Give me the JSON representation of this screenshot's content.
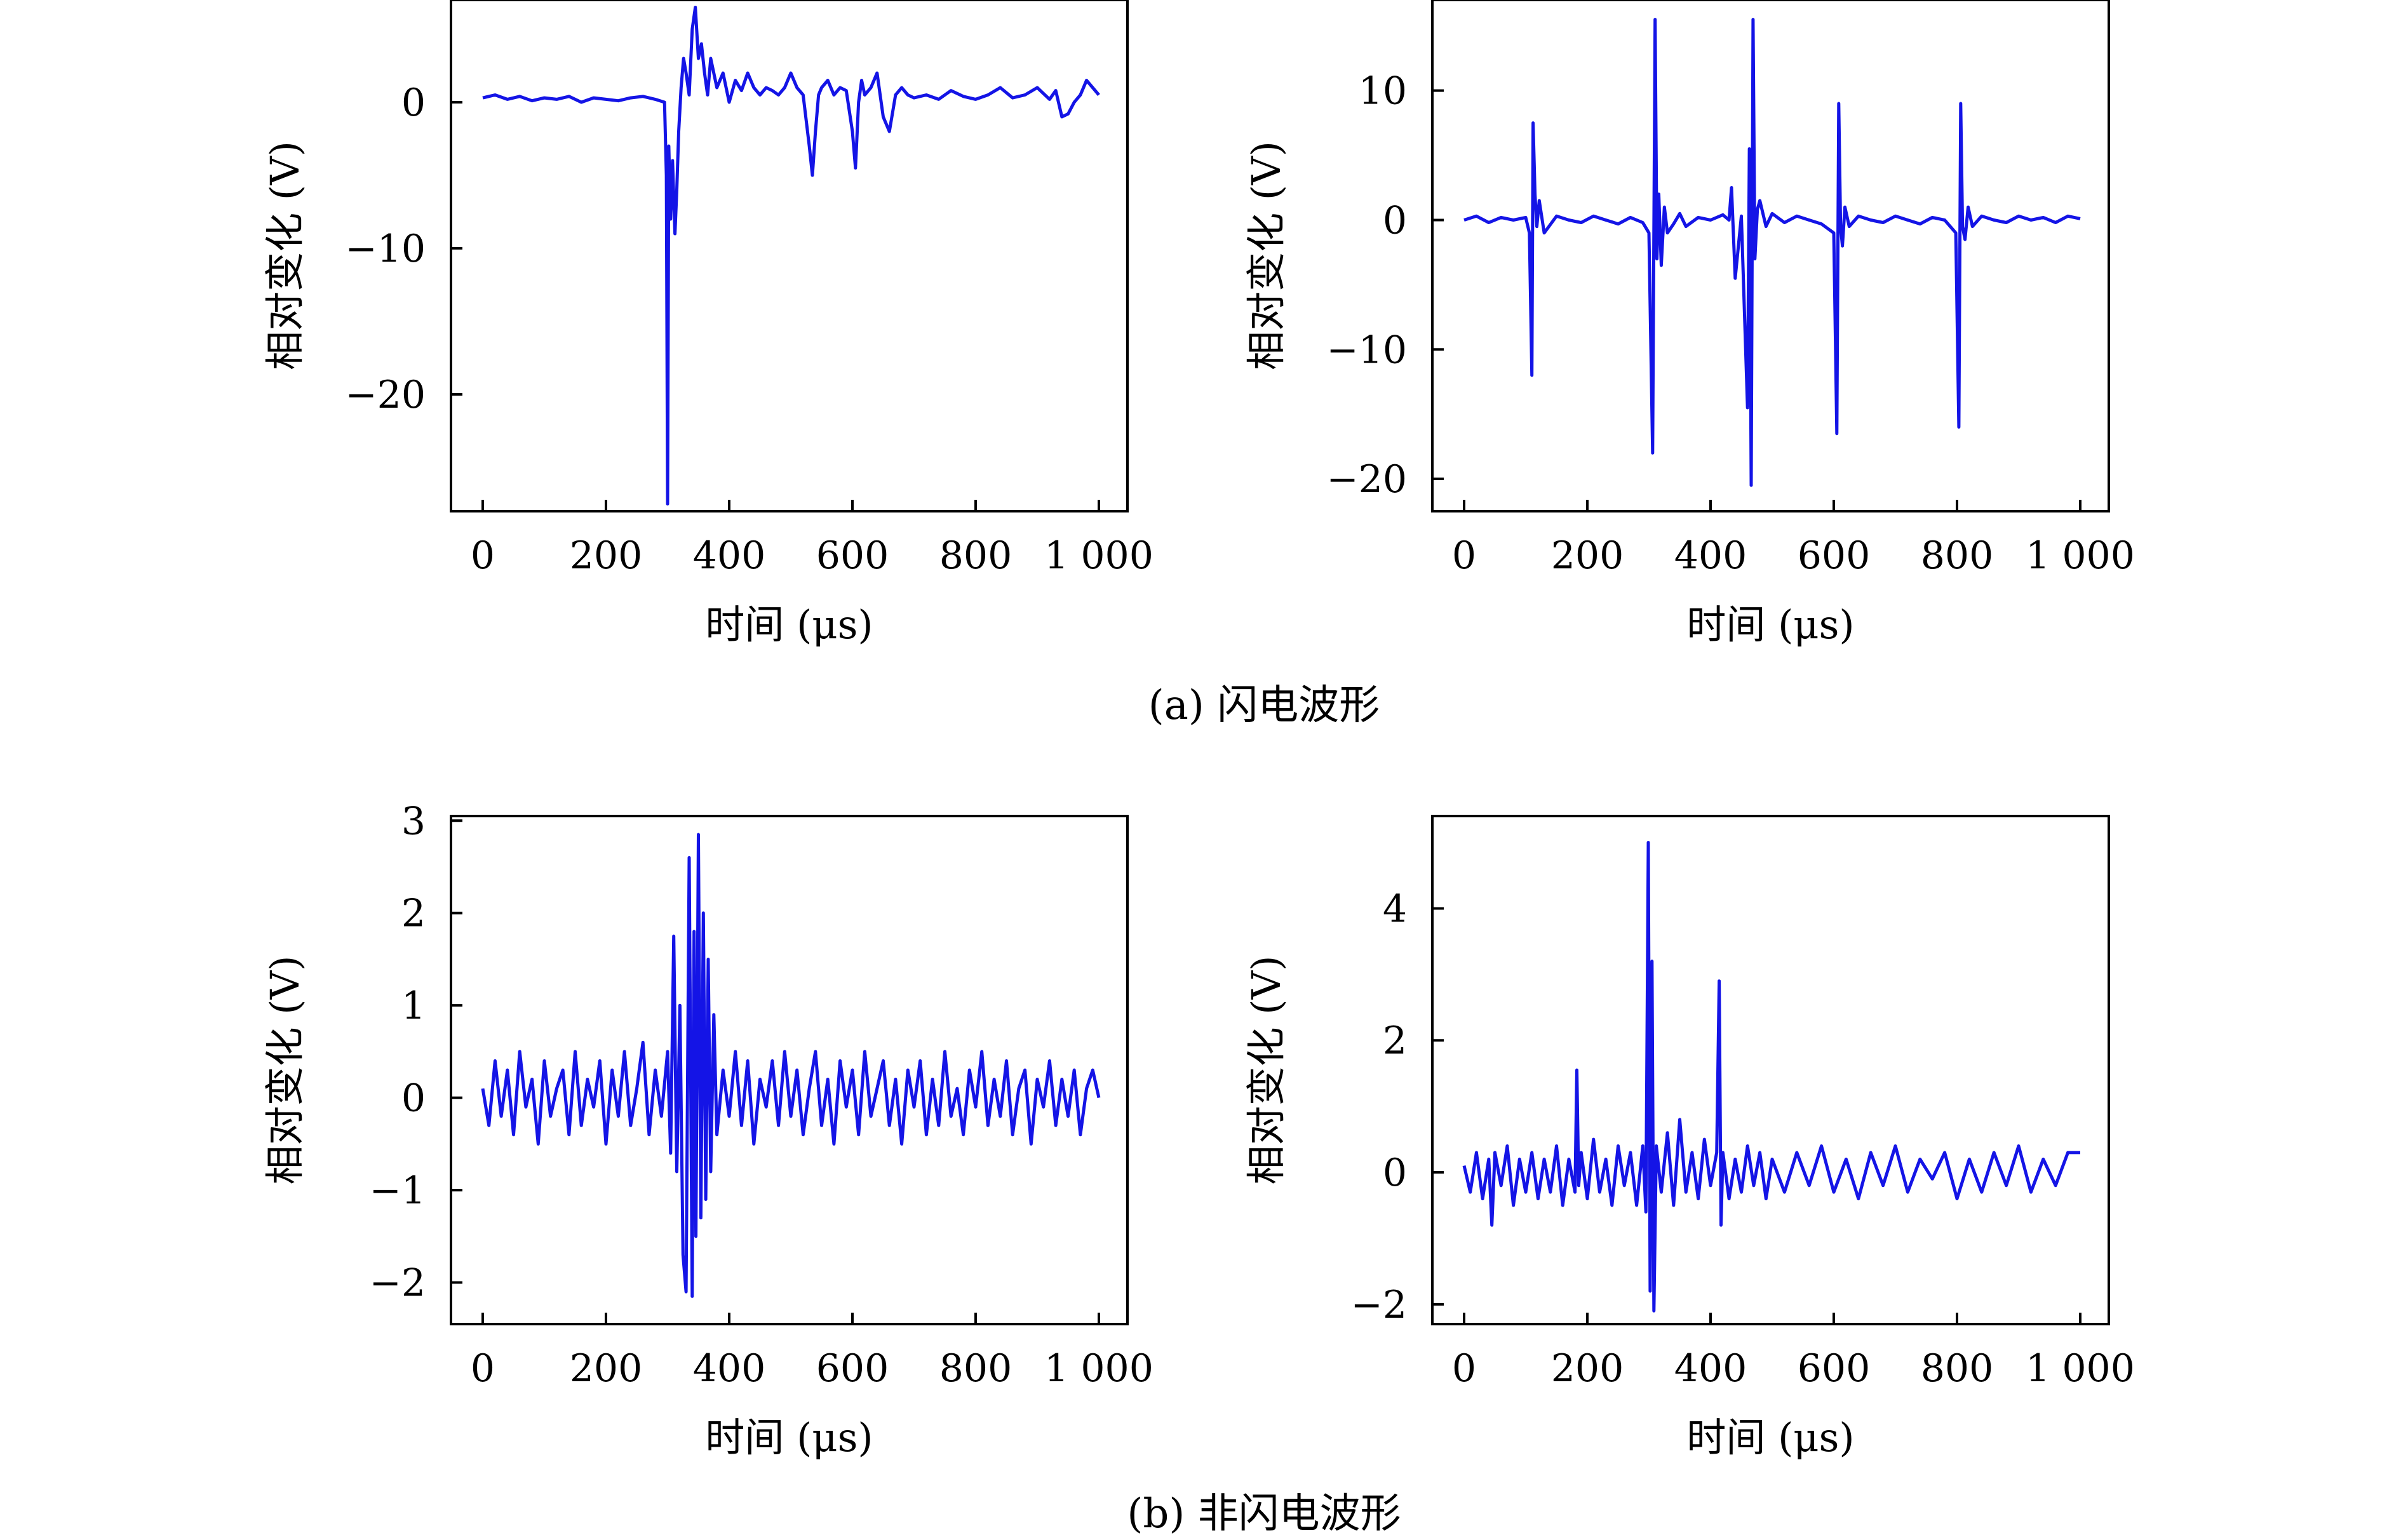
{
  "captions": {
    "a": "(a) 闪电波形",
    "b": "(b) 非闪电波形"
  },
  "colors": {
    "series": "#1414e6",
    "axis": "#000000",
    "background": "#ffffff"
  },
  "chart_data": [
    {
      "type": "line",
      "group": "a",
      "xlabel": "时间 (μs)",
      "ylabel": "相对变化 (V)",
      "xlim": [
        0,
        1000
      ],
      "ylim": [
        -28,
        7
      ],
      "xticks": [
        0,
        200,
        400,
        600,
        800,
        1000
      ],
      "xtick_labels": [
        "0",
        "200",
        "400",
        "600",
        "800",
        "1 000"
      ],
      "yticks": [
        0,
        -10,
        -20
      ],
      "ytick_labels": [
        "0",
        "−10",
        "−20"
      ],
      "series": [
        {
          "color": "#1414e6",
          "x": [
            0,
            20,
            40,
            60,
            80,
            100,
            120,
            140,
            160,
            180,
            200,
            220,
            240,
            260,
            280,
            295,
            298,
            300,
            302,
            305,
            308,
            312,
            315,
            318,
            322,
            326,
            330,
            335,
            340,
            345,
            350,
            355,
            360,
            365,
            370,
            380,
            390,
            400,
            410,
            420,
            430,
            440,
            450,
            460,
            470,
            480,
            490,
            500,
            510,
            520,
            530,
            535,
            540,
            545,
            550,
            560,
            570,
            580,
            590,
            600,
            605,
            610,
            615,
            620,
            630,
            640,
            650,
            660,
            670,
            680,
            690,
            700,
            720,
            740,
            760,
            780,
            800,
            820,
            840,
            860,
            880,
            900,
            920,
            930,
            940,
            950,
            960,
            970,
            980,
            990,
            1000
          ],
          "y": [
            0.3,
            0.5,
            0.2,
            0.4,
            0.1,
            0.3,
            0.2,
            0.4,
            0.0,
            0.3,
            0.2,
            0.1,
            0.3,
            0.4,
            0.2,
            0.0,
            -5.0,
            -27.5,
            -3.0,
            -8.0,
            -4.0,
            -9.0,
            -6.0,
            -2.0,
            1.0,
            3.0,
            2.0,
            0.5,
            5.0,
            6.5,
            3.0,
            4.0,
            2.0,
            0.5,
            3.0,
            1.0,
            2.0,
            0.0,
            1.5,
            0.8,
            2.0,
            1.0,
            0.5,
            1.0,
            0.8,
            0.5,
            1.0,
            2.0,
            1.0,
            0.5,
            -3.0,
            -5.0,
            -2.0,
            0.5,
            1.0,
            1.5,
            0.5,
            1.0,
            0.8,
            -2.0,
            -4.5,
            0.0,
            1.5,
            0.5,
            1.0,
            2.0,
            -1.0,
            -2.0,
            0.5,
            1.0,
            0.5,
            0.3,
            0.5,
            0.2,
            0.8,
            0.4,
            0.2,
            0.5,
            1.0,
            0.3,
            0.5,
            1.0,
            0.2,
            0.8,
            -1.0,
            -0.8,
            0.0,
            0.5,
            1.5,
            1.0,
            0.5
          ]
        }
      ]
    },
    {
      "type": "line",
      "group": "a",
      "xlabel": "时间 (μs)",
      "ylabel": "相对变化 (V)",
      "xlim": [
        0,
        1000
      ],
      "ylim": [
        -22.5,
        17
      ],
      "xticks": [
        0,
        200,
        400,
        600,
        800,
        1000
      ],
      "xtick_labels": [
        "0",
        "200",
        "400",
        "600",
        "800",
        "1 000"
      ],
      "yticks": [
        10,
        0,
        -10,
        -20
      ],
      "ytick_labels": [
        "10",
        "0",
        "−10",
        "−20"
      ],
      "series": [
        {
          "color": "#1414e6",
          "x": [
            0,
            20,
            40,
            60,
            80,
            100,
            106,
            110,
            112,
            115,
            118,
            122,
            130,
            150,
            170,
            190,
            210,
            230,
            250,
            270,
            290,
            300,
            306,
            310,
            313,
            316,
            320,
            325,
            330,
            340,
            350,
            360,
            380,
            400,
            420,
            430,
            434,
            440,
            450,
            460,
            463,
            466,
            469,
            472,
            476,
            480,
            490,
            500,
            520,
            540,
            560,
            580,
            600,
            605,
            608,
            611,
            614,
            618,
            625,
            640,
            660,
            680,
            700,
            720,
            740,
            760,
            780,
            798,
            803,
            806,
            809,
            813,
            818,
            825,
            840,
            860,
            880,
            900,
            920,
            940,
            960,
            980,
            1000
          ],
          "y": [
            0,
            0.3,
            -0.2,
            0.2,
            0,
            0.2,
            -1,
            -12,
            7.5,
            2,
            -0.5,
            1.5,
            -1,
            0.3,
            0,
            -0.2,
            0.3,
            0,
            -0.3,
            0.2,
            -0.2,
            -1,
            -18,
            15.5,
            -3,
            2,
            -3.5,
            1,
            -1,
            -0.3,
            0.5,
            -0.5,
            0.2,
            0,
            0.4,
            0,
            2.5,
            -4.5,
            0.3,
            -14.5,
            5.5,
            -20.5,
            15.5,
            -3,
            0.8,
            1.5,
            -0.5,
            0.5,
            -0.2,
            0.3,
            0,
            -0.3,
            -1,
            -16.5,
            9,
            -0.5,
            -2,
            1,
            -0.5,
            0.3,
            0,
            -0.2,
            0.3,
            0,
            -0.3,
            0.2,
            0,
            -1,
            -16,
            9,
            -0.5,
            -1.5,
            1,
            -0.5,
            0.3,
            0,
            -0.2,
            0.3,
            0,
            0.2,
            -0.2,
            0.3,
            0.1
          ]
        }
      ]
    },
    {
      "type": "line",
      "group": "b",
      "xlabel": "时间 (μs)",
      "ylabel": "相对变化 (V)",
      "xlim": [
        0,
        1000
      ],
      "ylim": [
        -2.45,
        3.05
      ],
      "xticks": [
        0,
        200,
        400,
        600,
        800,
        1000
      ],
      "xtick_labels": [
        "0",
        "200",
        "400",
        "600",
        "800",
        "1 000"
      ],
      "yticks": [
        3,
        2,
        1,
        0,
        -1,
        -2
      ],
      "ytick_labels": [
        "3",
        "2",
        "1",
        "0",
        "−1",
        "−2"
      ],
      "series": [
        {
          "color": "#1414e6",
          "x": [
            0,
            10,
            20,
            30,
            40,
            50,
            60,
            70,
            80,
            90,
            100,
            110,
            120,
            130,
            140,
            150,
            160,
            170,
            180,
            190,
            200,
            210,
            220,
            230,
            240,
            250,
            260,
            270,
            280,
            290,
            300,
            305,
            310,
            315,
            320,
            325,
            330,
            335,
            340,
            343,
            346,
            350,
            354,
            358,
            362,
            366,
            370,
            375,
            380,
            390,
            400,
            410,
            420,
            430,
            440,
            450,
            460,
            470,
            480,
            490,
            500,
            510,
            520,
            530,
            540,
            550,
            560,
            570,
            580,
            590,
            600,
            610,
            620,
            630,
            640,
            650,
            660,
            670,
            680,
            690,
            700,
            710,
            720,
            730,
            740,
            750,
            760,
            770,
            780,
            790,
            800,
            810,
            820,
            830,
            840,
            850,
            860,
            870,
            880,
            890,
            900,
            910,
            920,
            930,
            940,
            950,
            960,
            970,
            980,
            990,
            1000
          ],
          "y": [
            0.1,
            -0.3,
            0.4,
            -0.2,
            0.3,
            -0.4,
            0.5,
            -0.1,
            0.2,
            -0.5,
            0.4,
            -0.2,
            0.1,
            0.3,
            -0.4,
            0.5,
            -0.3,
            0.2,
            -0.1,
            0.4,
            -0.5,
            0.3,
            -0.2,
            0.5,
            -0.3,
            0.1,
            0.6,
            -0.4,
            0.3,
            -0.2,
            0.5,
            -0.6,
            1.75,
            -0.8,
            1.0,
            -1.7,
            -2.1,
            2.6,
            -2.15,
            1.8,
            -1.5,
            2.85,
            -1.3,
            2.0,
            -1.1,
            1.5,
            -0.8,
            0.9,
            -0.4,
            0.3,
            -0.2,
            0.5,
            -0.3,
            0.4,
            -0.5,
            0.2,
            -0.1,
            0.4,
            -0.3,
            0.5,
            -0.2,
            0.3,
            -0.4,
            0.1,
            0.5,
            -0.3,
            0.2,
            -0.5,
            0.4,
            -0.1,
            0.3,
            -0.4,
            0.5,
            -0.2,
            0.1,
            0.4,
            -0.3,
            0.2,
            -0.5,
            0.3,
            -0.1,
            0.4,
            -0.4,
            0.2,
            -0.3,
            0.5,
            -0.2,
            0.1,
            -0.4,
            0.3,
            -0.1,
            0.5,
            -0.3,
            0.2,
            -0.2,
            0.4,
            -0.4,
            0.1,
            0.3,
            -0.5,
            0.2,
            -0.1,
            0.4,
            -0.3,
            0.2,
            -0.2,
            0.3,
            -0.4,
            0.1,
            0.3,
            0.0
          ]
        }
      ]
    },
    {
      "type": "line",
      "group": "b",
      "xlabel": "时间 (μs)",
      "ylabel": "相对变化 (V)",
      "xlim": [
        0,
        1000
      ],
      "ylim": [
        -2.3,
        5.4
      ],
      "xticks": [
        0,
        200,
        400,
        600,
        800,
        1000
      ],
      "xtick_labels": [
        "0",
        "200",
        "400",
        "600",
        "800",
        "1 000"
      ],
      "yticks": [
        4,
        2,
        0,
        -2
      ],
      "ytick_labels": [
        "4",
        "2",
        "0",
        "−2"
      ],
      "series": [
        {
          "color": "#1414e6",
          "x": [
            0,
            10,
            20,
            30,
            40,
            45,
            50,
            60,
            70,
            80,
            90,
            100,
            110,
            120,
            130,
            140,
            150,
            160,
            170,
            180,
            183,
            186,
            190,
            200,
            210,
            220,
            230,
            240,
            250,
            260,
            270,
            280,
            290,
            295,
            299,
            302,
            305,
            308,
            312,
            320,
            330,
            340,
            350,
            360,
            370,
            380,
            390,
            400,
            410,
            414,
            417,
            420,
            430,
            440,
            450,
            460,
            470,
            480,
            490,
            500,
            520,
            540,
            560,
            580,
            600,
            620,
            640,
            660,
            680,
            700,
            720,
            740,
            760,
            780,
            800,
            820,
            840,
            860,
            880,
            900,
            920,
            940,
            960,
            980,
            1000
          ],
          "y": [
            0.1,
            -0.3,
            0.3,
            -0.4,
            0.2,
            -0.8,
            0.3,
            -0.2,
            0.4,
            -0.5,
            0.2,
            -0.3,
            0.3,
            -0.4,
            0.2,
            -0.3,
            0.4,
            -0.5,
            0.2,
            -0.3,
            1.55,
            -0.2,
            0.3,
            -0.4,
            0.5,
            -0.3,
            0.2,
            -0.5,
            0.4,
            -0.2,
            0.3,
            -0.5,
            0.4,
            -0.6,
            5.0,
            -1.8,
            3.2,
            -2.1,
            0.4,
            -0.3,
            0.6,
            -0.5,
            0.8,
            -0.3,
            0.3,
            -0.4,
            0.5,
            -0.2,
            0.3,
            2.9,
            -0.8,
            0.3,
            -0.4,
            0.2,
            -0.3,
            0.4,
            -0.2,
            0.3,
            -0.4,
            0.2,
            -0.3,
            0.3,
            -0.2,
            0.4,
            -0.3,
            0.2,
            -0.4,
            0.3,
            -0.2,
            0.4,
            -0.3,
            0.2,
            -0.1,
            0.3,
            -0.4,
            0.2,
            -0.3,
            0.3,
            -0.2,
            0.4,
            -0.3,
            0.2,
            -0.2,
            0.3,
            0.3
          ]
        }
      ]
    }
  ]
}
